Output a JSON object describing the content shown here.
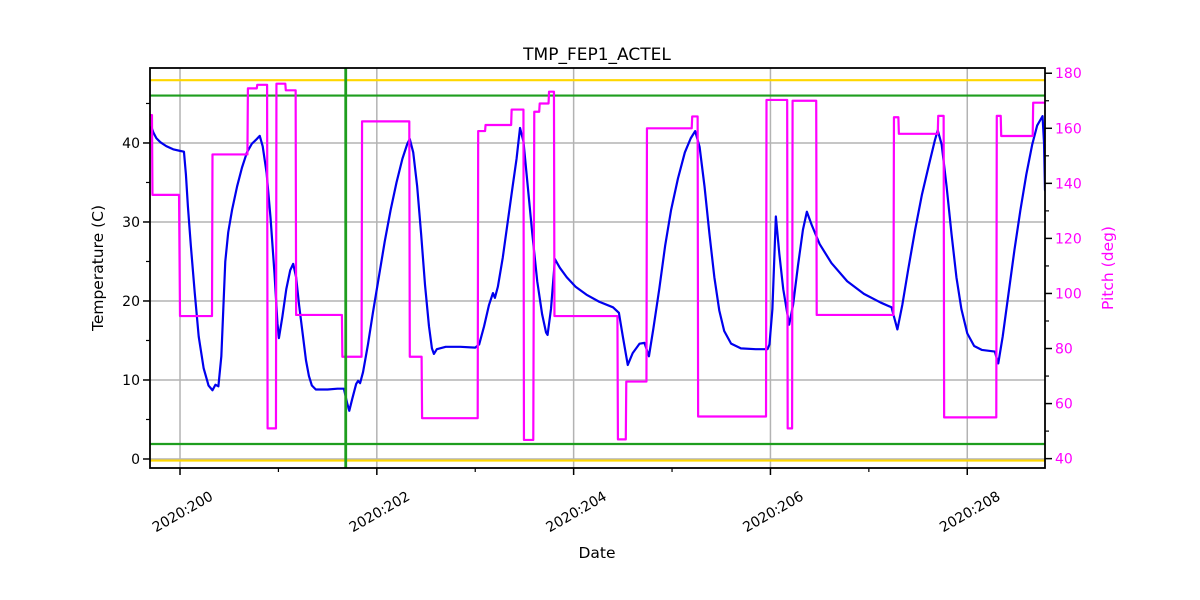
{
  "figure_title": "TMP_FEP1_ACTEL",
  "chart_data": {
    "type": "line",
    "title": "TMP_FEP1_ACTEL",
    "xlabel": "Date",
    "legend": "none",
    "grid": {
      "enabled": true,
      "color": "#b3b3b3",
      "x_days": [
        200,
        202,
        204,
        206,
        208
      ],
      "y_temps": [
        0,
        10,
        20,
        30,
        40
      ]
    },
    "x_axis": {
      "label": "Date",
      "range_days": [
        199.695,
        208.79
      ],
      "major_ticks": [
        {
          "day": 200,
          "label": "2020:200"
        },
        {
          "day": 202,
          "label": "2020:202"
        },
        {
          "day": 204,
          "label": "2020:204"
        },
        {
          "day": 206,
          "label": "2020:206"
        },
        {
          "day": 208,
          "label": "2020:208"
        }
      ],
      "minor_tick_days": [
        201,
        203,
        205,
        207
      ],
      "tick_label_rotation_deg": 30
    },
    "left_axis": {
      "label": "Temperature (C)",
      "units": "C",
      "range": [
        -1.14,
        49.49
      ],
      "ticks": [
        0,
        10,
        20,
        30,
        40
      ],
      "minor_ticks": [
        5,
        15,
        25,
        35,
        45
      ],
      "color": "#000000"
    },
    "right_axis": {
      "label": "Pitch (deg)",
      "units": "deg",
      "range": [
        36.6,
        181.9
      ],
      "ticks": [
        40,
        60,
        80,
        100,
        120,
        140,
        160,
        180
      ],
      "minor_ticks": [
        50,
        70,
        90,
        110,
        130,
        150,
        170
      ],
      "color": "#ff00ff"
    },
    "limit_lines": {
      "yellow_high_c": 47.95,
      "green_high_c": 46.0,
      "green_low_c": 1.9,
      "yellow_low_c": -0.2,
      "vertical_marker_day": 201.684,
      "yellow_color": "#ffd700",
      "green_color": "#1e9e1e"
    },
    "series": [
      {
        "name": "temperature",
        "axis": "left",
        "color": "#0000ee",
        "line_width": 2.2,
        "points": [
          [
            199.695,
            41.3
          ],
          [
            199.71,
            42.0
          ],
          [
            199.73,
            41.3
          ],
          [
            199.76,
            40.6
          ],
          [
            199.8,
            40.1
          ],
          [
            199.86,
            39.6
          ],
          [
            199.93,
            39.2
          ],
          [
            200.0,
            39.0
          ],
          [
            200.04,
            38.9
          ],
          [
            200.06,
            36.0
          ],
          [
            200.08,
            32.0
          ],
          [
            200.11,
            27.0
          ],
          [
            200.15,
            21.0
          ],
          [
            200.19,
            15.5
          ],
          [
            200.24,
            11.5
          ],
          [
            200.29,
            9.3
          ],
          [
            200.33,
            8.7
          ],
          [
            200.36,
            9.4
          ],
          [
            200.39,
            9.2
          ],
          [
            200.42,
            13.0
          ],
          [
            200.44,
            19.0
          ],
          [
            200.46,
            25.0
          ],
          [
            200.49,
            28.7
          ],
          [
            200.53,
            31.6
          ],
          [
            200.58,
            34.5
          ],
          [
            200.63,
            36.9
          ],
          [
            200.68,
            38.8
          ],
          [
            200.73,
            39.9
          ],
          [
            200.78,
            40.5
          ],
          [
            200.81,
            40.9
          ],
          [
            200.84,
            39.6
          ],
          [
            200.88,
            36.2
          ],
          [
            200.92,
            30.5
          ],
          [
            200.96,
            23.5
          ],
          [
            200.99,
            17.2
          ],
          [
            201.005,
            15.3
          ],
          [
            201.04,
            18.0
          ],
          [
            201.08,
            21.5
          ],
          [
            201.12,
            23.9
          ],
          [
            201.15,
            24.7
          ],
          [
            201.18,
            23.0
          ],
          [
            201.21,
            19.5
          ],
          [
            201.25,
            15.5
          ],
          [
            201.28,
            12.5
          ],
          [
            201.31,
            10.5
          ],
          [
            201.34,
            9.3
          ],
          [
            201.38,
            8.8
          ],
          [
            201.5,
            8.8
          ],
          [
            201.6,
            8.9
          ],
          [
            201.665,
            8.9
          ],
          [
            201.7,
            7.0
          ],
          [
            201.72,
            6.1
          ],
          [
            201.75,
            7.6
          ],
          [
            201.79,
            9.5
          ],
          [
            201.81,
            9.9
          ],
          [
            201.83,
            9.6
          ],
          [
            201.86,
            11.0
          ],
          [
            201.91,
            14.5
          ],
          [
            201.96,
            18.5
          ],
          [
            202.02,
            23.0
          ],
          [
            202.08,
            27.5
          ],
          [
            202.14,
            31.5
          ],
          [
            202.2,
            35.0
          ],
          [
            202.26,
            38.0
          ],
          [
            202.31,
            39.9
          ],
          [
            202.335,
            40.5
          ],
          [
            202.37,
            38.8
          ],
          [
            202.41,
            34.5
          ],
          [
            202.45,
            28.5
          ],
          [
            202.49,
            22.0
          ],
          [
            202.53,
            16.8
          ],
          [
            202.56,
            14.0
          ],
          [
            202.58,
            13.3
          ],
          [
            202.61,
            13.9
          ],
          [
            202.7,
            14.2
          ],
          [
            202.85,
            14.2
          ],
          [
            203.0,
            14.1
          ],
          [
            203.04,
            14.5
          ],
          [
            203.09,
            16.8
          ],
          [
            203.14,
            19.5
          ],
          [
            203.18,
            21.0
          ],
          [
            203.2,
            20.4
          ],
          [
            203.23,
            21.8
          ],
          [
            203.28,
            25.5
          ],
          [
            203.33,
            30.0
          ],
          [
            203.38,
            34.5
          ],
          [
            203.42,
            38.0
          ],
          [
            203.455,
            41.9
          ],
          [
            203.49,
            40.2
          ],
          [
            203.53,
            35.0
          ],
          [
            203.58,
            28.5
          ],
          [
            203.63,
            22.5
          ],
          [
            203.68,
            18.3
          ],
          [
            203.72,
            16.0
          ],
          [
            203.735,
            15.7
          ],
          [
            203.77,
            19.0
          ],
          [
            203.81,
            25.3
          ],
          [
            203.86,
            24.2
          ],
          [
            203.93,
            23.0
          ],
          [
            204.02,
            21.8
          ],
          [
            204.13,
            20.8
          ],
          [
            204.26,
            19.9
          ],
          [
            204.4,
            19.2
          ],
          [
            204.46,
            18.5
          ],
          [
            204.5,
            15.5
          ],
          [
            204.55,
            11.9
          ],
          [
            204.6,
            13.4
          ],
          [
            204.67,
            14.6
          ],
          [
            204.72,
            14.7
          ],
          [
            204.765,
            13.0
          ],
          [
            204.81,
            16.5
          ],
          [
            204.87,
            21.5
          ],
          [
            204.93,
            27.0
          ],
          [
            204.99,
            31.5
          ],
          [
            205.06,
            35.5
          ],
          [
            205.13,
            38.8
          ],
          [
            205.19,
            40.6
          ],
          [
            205.235,
            41.5
          ],
          [
            205.28,
            39.5
          ],
          [
            205.33,
            34.5
          ],
          [
            205.38,
            28.5
          ],
          [
            205.43,
            23.0
          ],
          [
            205.48,
            18.8
          ],
          [
            205.53,
            16.2
          ],
          [
            205.6,
            14.6
          ],
          [
            205.7,
            14.0
          ],
          [
            205.85,
            13.9
          ],
          [
            205.97,
            13.9
          ],
          [
            205.99,
            14.5
          ],
          [
            206.02,
            19.0
          ],
          [
            206.055,
            30.7
          ],
          [
            206.09,
            26.0
          ],
          [
            206.13,
            21.5
          ],
          [
            206.17,
            18.5
          ],
          [
            206.19,
            17.0
          ],
          [
            206.23,
            19.5
          ],
          [
            206.28,
            24.5
          ],
          [
            206.33,
            29.0
          ],
          [
            206.37,
            31.3
          ],
          [
            206.42,
            29.6
          ],
          [
            206.5,
            27.2
          ],
          [
            206.62,
            24.8
          ],
          [
            206.78,
            22.5
          ],
          [
            206.95,
            20.9
          ],
          [
            207.12,
            19.8
          ],
          [
            207.23,
            19.2
          ],
          [
            207.26,
            17.8
          ],
          [
            207.29,
            16.4
          ],
          [
            207.34,
            19.5
          ],
          [
            207.4,
            24.0
          ],
          [
            207.47,
            29.0
          ],
          [
            207.54,
            33.5
          ],
          [
            207.61,
            37.2
          ],
          [
            207.67,
            40.3
          ],
          [
            207.7,
            41.6
          ],
          [
            207.74,
            39.8
          ],
          [
            207.79,
            34.5
          ],
          [
            207.84,
            28.5
          ],
          [
            207.89,
            23.0
          ],
          [
            207.94,
            19.0
          ],
          [
            208.0,
            15.9
          ],
          [
            208.07,
            14.3
          ],
          [
            208.15,
            13.8
          ],
          [
            208.28,
            13.6
          ],
          [
            208.315,
            12.1
          ],
          [
            208.36,
            15.5
          ],
          [
            208.42,
            21.0
          ],
          [
            208.48,
            26.5
          ],
          [
            208.54,
            31.5
          ],
          [
            208.6,
            36.0
          ],
          [
            208.66,
            39.8
          ],
          [
            208.71,
            42.2
          ],
          [
            208.765,
            43.4
          ],
          [
            208.78,
            40.0
          ],
          [
            208.79,
            34.0
          ]
        ]
      },
      {
        "name": "pitch",
        "axis": "right",
        "color": "#ff00ff",
        "line_width": 2.2,
        "points": [
          [
            199.695,
            164.8
          ],
          [
            199.715,
            164.8
          ],
          [
            199.72,
            135.8
          ],
          [
            199.99,
            135.8
          ],
          [
            200.0,
            91.8
          ],
          [
            200.325,
            91.8
          ],
          [
            200.33,
            150.5
          ],
          [
            200.685,
            150.5
          ],
          [
            200.69,
            174.5
          ],
          [
            200.78,
            174.5
          ],
          [
            200.785,
            175.8
          ],
          [
            200.885,
            175.8
          ],
          [
            200.89,
            51.0
          ],
          [
            200.975,
            51.0
          ],
          [
            200.98,
            176.2
          ],
          [
            201.07,
            176.2
          ],
          [
            201.075,
            173.8
          ],
          [
            201.175,
            173.8
          ],
          [
            201.18,
            92.2
          ],
          [
            201.645,
            92.2
          ],
          [
            201.65,
            77.0
          ],
          [
            201.845,
            77.0
          ],
          [
            201.85,
            162.5
          ],
          [
            202.33,
            162.5
          ],
          [
            202.335,
            77.0
          ],
          [
            202.455,
            77.0
          ],
          [
            202.46,
            54.7
          ],
          [
            203.025,
            54.7
          ],
          [
            203.03,
            159.0
          ],
          [
            203.1,
            159.0
          ],
          [
            203.105,
            161.2
          ],
          [
            203.365,
            161.2
          ],
          [
            203.37,
            166.8
          ],
          [
            203.49,
            166.8
          ],
          [
            203.495,
            46.8
          ],
          [
            203.59,
            46.8
          ],
          [
            203.6,
            166.0
          ],
          [
            203.65,
            166.0
          ],
          [
            203.655,
            169.0
          ],
          [
            203.745,
            169.0
          ],
          [
            203.75,
            173.3
          ],
          [
            203.8,
            173.3
          ],
          [
            203.805,
            91.8
          ],
          [
            204.445,
            91.8
          ],
          [
            204.45,
            47.0
          ],
          [
            204.53,
            47.0
          ],
          [
            204.535,
            68.0
          ],
          [
            204.74,
            68.0
          ],
          [
            204.745,
            160.0
          ],
          [
            205.2,
            160.0
          ],
          [
            205.205,
            164.3
          ],
          [
            205.26,
            164.3
          ],
          [
            205.265,
            55.3
          ],
          [
            205.955,
            55.3
          ],
          [
            205.96,
            170.3
          ],
          [
            206.17,
            170.3
          ],
          [
            206.175,
            51.0
          ],
          [
            206.22,
            51.0
          ],
          [
            206.225,
            170.0
          ],
          [
            206.465,
            170.0
          ],
          [
            206.47,
            92.2
          ],
          [
            207.25,
            92.2
          ],
          [
            207.255,
            164.0
          ],
          [
            207.3,
            164.0
          ],
          [
            207.305,
            158.0
          ],
          [
            207.7,
            158.0
          ],
          [
            207.705,
            164.5
          ],
          [
            207.76,
            164.5
          ],
          [
            207.765,
            55.0
          ],
          [
            208.295,
            55.0
          ],
          [
            208.3,
            164.5
          ],
          [
            208.34,
            164.5
          ],
          [
            208.345,
            157.2
          ],
          [
            208.665,
            157.2
          ],
          [
            208.67,
            169.3
          ],
          [
            208.79,
            169.3
          ]
        ]
      }
    ]
  }
}
